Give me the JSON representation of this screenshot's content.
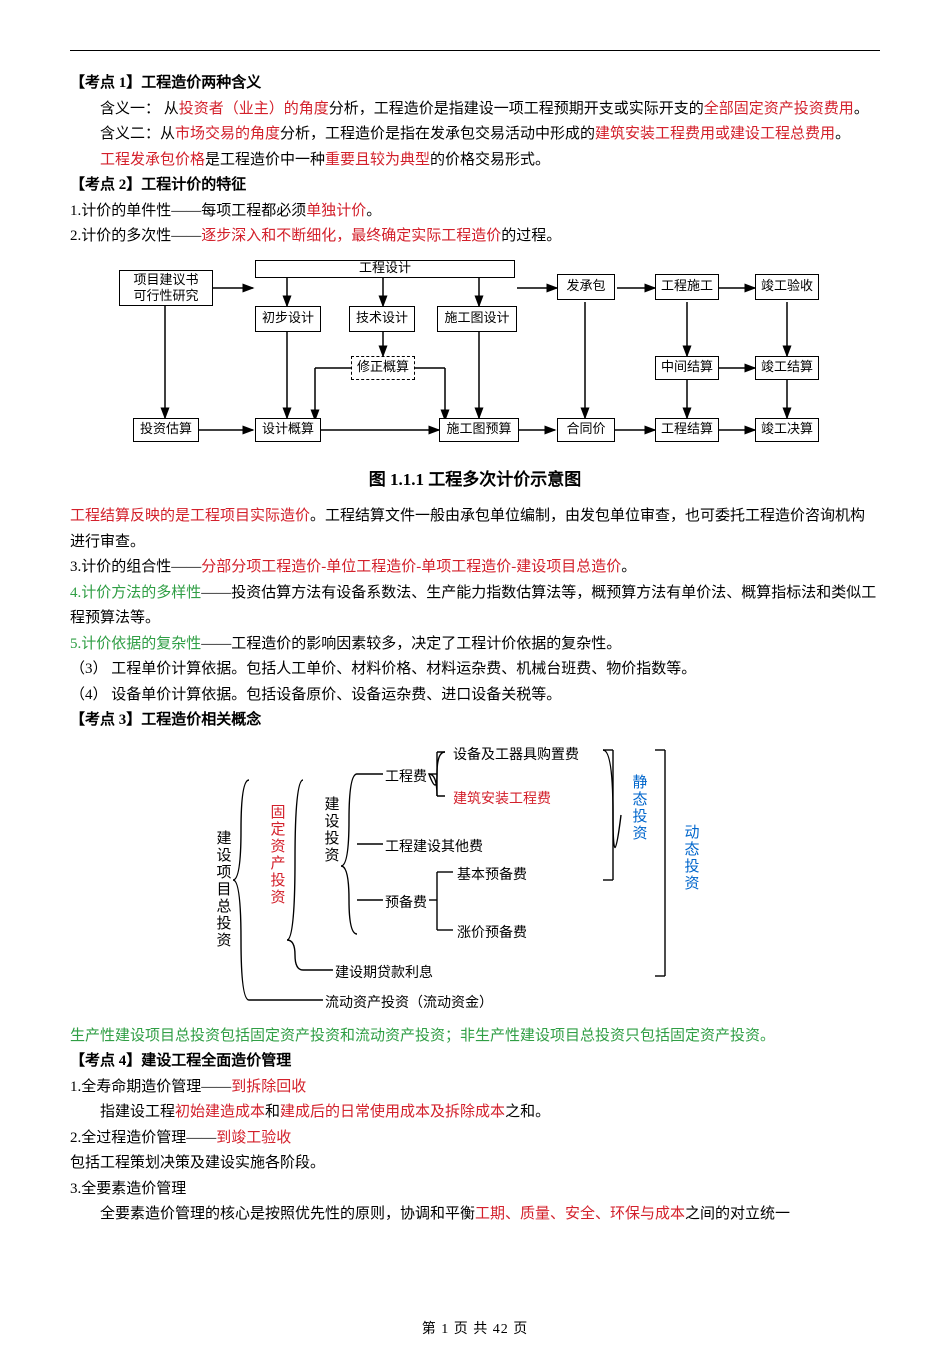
{
  "topic1": {
    "header": "【考点 1】工程造价两种含义",
    "line1_a": "含义一：  从",
    "line1_b": "投资者（业主）的角度",
    "line1_c": "分析，工程造价是指建设一项工程预期开支或实际开支的",
    "line1_d": "全部固定资产投资费用",
    "line1_e": "。",
    "line2_a": "含义二：从",
    "line2_b": "市场交易的角度",
    "line2_c": "分析，工程造价是指在发承包交易活动中形成的",
    "line2_d": "建筑安装工程费用或建设工程总费用",
    "line2_e": "。",
    "line3_a": "工程发承包价格",
    "line3_b": "是工程造价中一种",
    "line3_c": "重要且较为典型",
    "line3_d": "的价格交易形式。"
  },
  "topic2": {
    "header": "【考点 2】工程计价的特征",
    "l1_a": "1.计价的单件性——每项工程都必须",
    "l1_b": "单独计价",
    "l1_c": "。",
    "l2_a": "2.计价的多次性——",
    "l2_b": "逐步深入和不断细化，最终确定实际工程造价",
    "l2_c": "的过程。"
  },
  "diagram1": {
    "caption": "图 1.1.1  工程多次计价示意图",
    "boxes": {
      "proj": "项目建议书\n可行性研究",
      "engdes": "工程设计",
      "prelim": "初步设计",
      "tech": "技术设计",
      "cons": "施工图设计",
      "fcb": "发承包",
      "gcsg": "工程施工",
      "jgys": "竣工验收",
      "xzgs": "修正概算",
      "zjjs": "中间结算",
      "jgjs2": "竣工结算",
      "tzgs": "投资估算",
      "sjgs": "设计概算",
      "sgtys": "施工图预算",
      "htj": "合同价",
      "gcjs": "工程结算",
      "jgjc": "竣工决算"
    }
  },
  "after_d1": {
    "s1_a": "工程结算反映的是工程项目实际造价",
    "s1_b": "。工程结算文件一般由承包单位编制，由发包单位审查，也可委托工程造价咨询机构进行审查。",
    "l3_a": "3.计价的组合性——",
    "l3_b": "分部分项工程造价-单位工程造价-单项工程造价-建设项目总造价",
    "l3_c": "。",
    "l4_a": "4.计价方法的多样性",
    "l4_b": "——投资估算方法有设备系数法、生产能力指数估算法等，概预算方法有单价法、概算指标法和类似工程预算法等。",
    "l5_a": "5.计价依据的复杂性",
    "l5_b": "——工程造价的影响因素较多，决定了工程计价依据的复杂性。",
    "l6": "（3） 工程单价计算依据。包括人工单价、材料价格、材料运杂费、机械台班费、物价指数等。",
    "l7": "（4） 设备单价计算依据。包括设备原价、设备运杂费、进口设备关税等。"
  },
  "topic3": {
    "header": "【考点 3】工程造价相关概念"
  },
  "diagram2": {
    "root": "建设项目总投资",
    "fixed": "固定资产投资",
    "build": "建设投资",
    "gcf": "工程费",
    "sbf": "设备及工器具购置费",
    "jzf": "建筑安装工程费",
    "gcjs": "工程建设其他费",
    "jbybf": "基本预备费",
    "ybf": "预备费",
    "zjybf": "涨价预备费",
    "loan": "建设期贷款利息",
    "flow": "流动资产投资（流动资金）",
    "static": "静态投资",
    "dynamic": "动态投资"
  },
  "after_d2": {
    "s1": "生产性建设项目总投资包括固定资产投资和流动资产投资；非生产性建设项目总投资只包括固定资产投资。"
  },
  "topic4": {
    "header": "【考点 4】建设工程全面造价管理",
    "l1_a": "1.全寿命期造价管理——",
    "l1_b": "到拆除回收",
    "l2_a": "指建设工程",
    "l2_b": "初始建造成本",
    "l2_c": "和",
    "l2_d": "建成后的日常使用成本及拆除成本",
    "l2_e": "之和。",
    "l3_a": "2.全过程造价管理——",
    "l3_b": "到竣工验收",
    "l4": "包括工程策划决策及建设实施各阶段。",
    "l5": "3.全要素造价管理",
    "l6_a": "全要素造价管理的核心是按照优先性的原则，协调和平衡",
    "l6_b": "工期、质量、安全、环保与成本",
    "l6_c": "之间的对立统一"
  },
  "footer": {
    "text": "第 1 页 共 42 页"
  }
}
